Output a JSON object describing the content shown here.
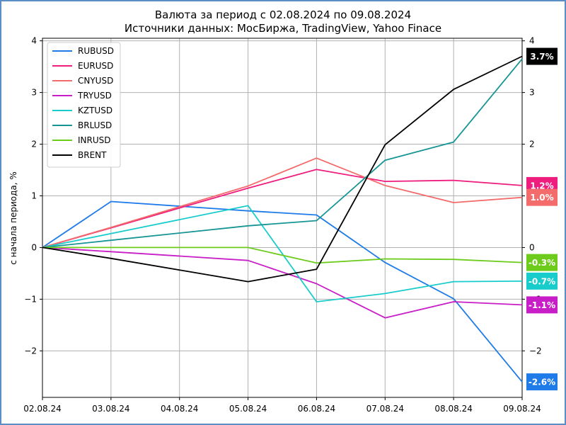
{
  "chart_data": {
    "type": "line",
    "title": "Валюта за период с 02.08.2024 по 09.08.2024",
    "subtitle": "Источники данных: МосБиржа, TradingView, Yahoo Finace",
    "xlabel": "",
    "ylabel": "с начала периода, %",
    "ylim": [
      -2.9,
      4.05
    ],
    "yticks": [
      "4",
      "3",
      "2",
      "1",
      "0",
      "−1",
      "−2"
    ],
    "yticks_right": [
      "4",
      "3",
      "2",
      "1",
      "0",
      "−1",
      "−2"
    ],
    "categories": [
      "02.08.24",
      "03.08.24",
      "04.08.24",
      "05.08.24",
      "06.08.24",
      "07.08.24",
      "08.08.24",
      "09.08.24"
    ],
    "grid": true,
    "legend_position": "top-left",
    "series": [
      {
        "name": "RUBUSD",
        "color": "#1f7be8",
        "values": [
          0,
          0.89,
          null,
          0.71,
          0.63,
          -0.29,
          -0.99,
          -2.6
        ],
        "end_label": "-2.6%"
      },
      {
        "name": "EURUSD",
        "color": "#ee1d7e",
        "values": [
          0,
          0.38,
          null,
          1.15,
          1.51,
          1.28,
          1.3,
          1.2
        ],
        "end_label": "1.2%"
      },
      {
        "name": "CNYUSD",
        "color": "#f36b6b",
        "values": [
          0,
          0.39,
          null,
          1.19,
          1.73,
          1.2,
          0.87,
          0.97
        ],
        "end_label": "1.0%"
      },
      {
        "name": "TRYUSD",
        "color": "#c71ec7",
        "values": [
          0,
          -0.08,
          null,
          -0.25,
          -0.7,
          -1.36,
          -1.05,
          -1.11
        ],
        "end_label": "-1.1%"
      },
      {
        "name": "KZTUSD",
        "color": "#19cccc",
        "values": [
          0,
          0.27,
          null,
          0.81,
          -1.05,
          -0.89,
          -0.66,
          -0.65
        ],
        "end_label": "-0.7%"
      },
      {
        "name": "BRLUSD",
        "color": "#179595",
        "values": [
          0,
          0.14,
          null,
          0.42,
          0.52,
          1.69,
          2.04,
          3.65
        ],
        "end_label": ""
      },
      {
        "name": "INRUSD",
        "color": "#6ccb1b",
        "values": [
          0,
          0.0,
          null,
          0.0,
          -0.3,
          -0.22,
          -0.23,
          -0.29
        ],
        "end_label": "-0.3%"
      },
      {
        "name": "BRENT",
        "color": "#000000",
        "values": [
          0,
          -0.21,
          null,
          -0.66,
          -0.42,
          1.99,
          3.06,
          3.7
        ],
        "end_label": "3.7%"
      }
    ]
  }
}
